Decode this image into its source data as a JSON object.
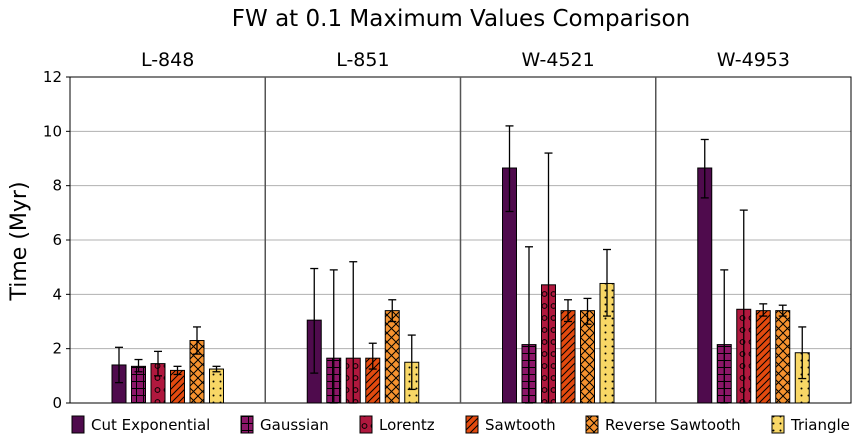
{
  "chart_data": {
    "type": "bar",
    "title": "FW at 0.1 Maximum Values Comparison",
    "ylabel": "Time (Myr)",
    "xlabel": "",
    "ylim": [
      0,
      12
    ],
    "yticks": [
      0,
      2,
      4,
      6,
      8,
      10,
      12
    ],
    "grid": true,
    "legend_position": "bottom",
    "panels": [
      "L-848",
      "L-851",
      "W-4521",
      "W-4953"
    ],
    "series": [
      {
        "name": "Cut Exponential",
        "color": "#4f0b4d",
        "hatch": "none",
        "values": [
          1.4,
          3.05,
          8.65,
          8.65
        ],
        "err_low": [
          0.75,
          1.1,
          7.05,
          7.55
        ],
        "err_high": [
          2.05,
          4.95,
          10.2,
          9.7
        ]
      },
      {
        "name": "Gaussian",
        "color": "#8c1668",
        "hatch": "grid",
        "values": [
          1.35,
          1.65,
          2.15,
          2.15
        ],
        "err_low": [
          1.15,
          0.0,
          0.0,
          0.0
        ],
        "err_high": [
          1.6,
          4.9,
          5.75,
          4.9
        ]
      },
      {
        "name": "Lorentz",
        "color": "#b0183e",
        "hatch": "circles",
        "values": [
          1.45,
          1.65,
          4.35,
          3.45
        ],
        "err_low": [
          1.0,
          0.0,
          0.0,
          0.0
        ],
        "err_high": [
          1.9,
          5.2,
          9.2,
          7.1
        ]
      },
      {
        "name": "Sawtooth",
        "color": "#e34a0f",
        "hatch": "diag",
        "values": [
          1.2,
          1.65,
          3.4,
          3.4
        ],
        "err_low": [
          1.05,
          1.25,
          3.0,
          3.2
        ],
        "err_high": [
          1.35,
          2.2,
          3.8,
          3.65
        ]
      },
      {
        "name": "Reverse Sawtooth",
        "color": "#f5922f",
        "hatch": "cross",
        "values": [
          2.3,
          3.4,
          3.4,
          3.4
        ],
        "err_low": [
          1.8,
          3.0,
          2.9,
          3.2
        ],
        "err_high": [
          2.8,
          3.8,
          3.85,
          3.6
        ]
      },
      {
        "name": "Triangle",
        "color": "#f8d766",
        "hatch": "dots",
        "values": [
          1.25,
          1.5,
          4.4,
          1.85
        ],
        "err_low": [
          1.15,
          0.5,
          3.2,
          0.9
        ],
        "err_high": [
          1.35,
          2.5,
          5.65,
          2.8
        ]
      }
    ]
  }
}
